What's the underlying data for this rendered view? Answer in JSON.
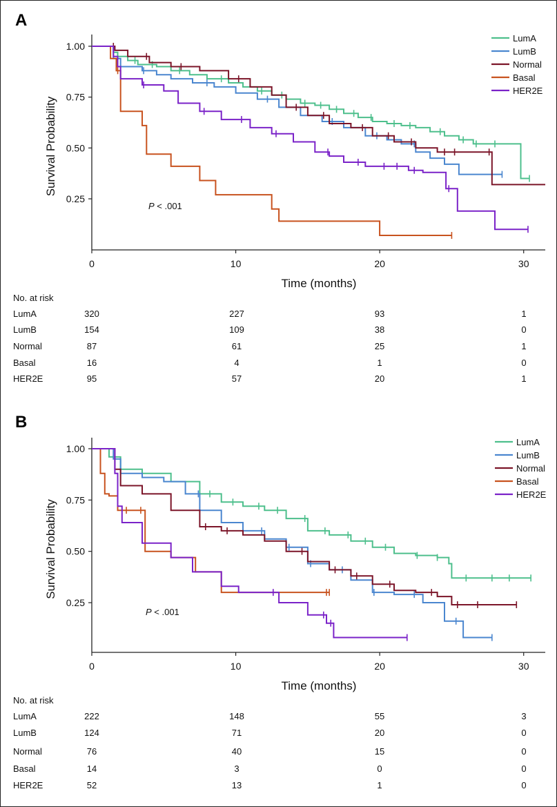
{
  "chart_data": [
    {
      "type": "line",
      "panel": "A",
      "xlabel": "Time (months)",
      "ylabel": "Survival Probability",
      "xlim": [
        0,
        31.5
      ],
      "ylim": [
        0,
        1.05
      ],
      "xticks": [
        "0",
        "10",
        "20",
        "30"
      ],
      "yticks": [
        "1.00",
        "0.75",
        "0.50",
        "0.25"
      ],
      "legend": [
        "LumA",
        "LumB",
        "Normal",
        "Basal",
        "HER2E"
      ],
      "annotation": {
        "italic": "P",
        "rest": " < .001"
      },
      "series": [
        {
          "name": "LumA",
          "color": "#4dbf8c",
          "x": [
            0,
            1.5,
            1.8,
            2.5,
            3.2,
            4.5,
            5.5,
            6.8,
            8,
            9.5,
            10.5,
            11.5,
            12.5,
            13.5,
            14.5,
            15.5,
            16.5,
            17.5,
            18.5,
            19.5,
            20.5,
            21.5,
            22.5,
            23.5,
            24.5,
            25.5,
            26.5,
            27.5,
            28.5,
            29.8,
            30.4
          ],
          "y": [
            1,
            0.97,
            0.95,
            0.93,
            0.91,
            0.9,
            0.88,
            0.86,
            0.84,
            0.82,
            0.8,
            0.78,
            0.76,
            0.74,
            0.72,
            0.71,
            0.69,
            0.67,
            0.65,
            0.63,
            0.62,
            0.61,
            0.6,
            0.58,
            0.56,
            0.54,
            0.52,
            0.52,
            0.52,
            0.35,
            0.35
          ],
          "censor": [
            3.0,
            4.2,
            6.1,
            9.0,
            11.8,
            13.2,
            14.8,
            15.9,
            17.0,
            18.2,
            19.4,
            21.0,
            22.1,
            24.2,
            25.8,
            26.7,
            28.0,
            30.4
          ]
        },
        {
          "name": "LumB",
          "color": "#4a86cf",
          "x": [
            0,
            1.5,
            2,
            3.5,
            4.5,
            5.5,
            7,
            8.5,
            10,
            11.5,
            13,
            14.5,
            16,
            17.5,
            19,
            20.5,
            21.5,
            22.5,
            23.5,
            24.5,
            25.5,
            28.5
          ],
          "y": [
            1,
            0.94,
            0.9,
            0.88,
            0.86,
            0.84,
            0.82,
            0.8,
            0.77,
            0.74,
            0.7,
            0.66,
            0.63,
            0.6,
            0.56,
            0.54,
            0.52,
            0.48,
            0.45,
            0.42,
            0.37,
            0.37
          ],
          "censor": [
            3.6,
            8.0,
            12.2,
            16.7,
            19.8,
            22.4,
            28.5
          ]
        },
        {
          "name": "Normal",
          "color": "#7b1428",
          "x": [
            0,
            1.6,
            2.5,
            4,
            5.5,
            7.5,
            9.5,
            11,
            12.5,
            13.5,
            15,
            16.5,
            18,
            19.5,
            21,
            22.5,
            24,
            27.5,
            27.8,
            31.5
          ],
          "y": [
            1,
            0.98,
            0.95,
            0.92,
            0.9,
            0.88,
            0.84,
            0.8,
            0.76,
            0.7,
            0.66,
            0.62,
            0.6,
            0.56,
            0.53,
            0.5,
            0.48,
            0.48,
            0.32,
            0.32
          ],
          "censor": [
            1.5,
            3.8,
            6.2,
            10.2,
            14.2,
            16.1,
            18.8,
            20.6,
            22.2,
            24.5,
            25.2,
            27.6
          ]
        },
        {
          "name": "Basal",
          "color": "#c8521e",
          "x": [
            0,
            1.3,
            1.7,
            2,
            3.5,
            3.8,
            5.5,
            7.5,
            8.6,
            12.5,
            13,
            19.5,
            20,
            25
          ],
          "y": [
            1,
            0.94,
            0.88,
            0.68,
            0.61,
            0.47,
            0.41,
            0.34,
            0.27,
            0.2,
            0.14,
            0.14,
            0.07,
            0.07
          ],
          "censor": [
            1.8,
            25.0
          ]
        },
        {
          "name": "HER2E",
          "color": "#7a22c8",
          "x": [
            0,
            1.5,
            1.8,
            2,
            3.5,
            5,
            6,
            7.5,
            9,
            11,
            12.5,
            14,
            15.5,
            16.5,
            17.5,
            19,
            22,
            23,
            24.6,
            25.4,
            28,
            30.3
          ],
          "y": [
            1,
            0.95,
            0.9,
            0.84,
            0.81,
            0.78,
            0.72,
            0.68,
            0.64,
            0.6,
            0.57,
            0.53,
            0.48,
            0.46,
            0.43,
            0.41,
            0.39,
            0.38,
            0.3,
            0.19,
            0.1,
            0.1
          ],
          "censor": [
            3.6,
            7.8,
            10.4,
            12.8,
            16.4,
            18.5,
            20.3,
            21.2,
            22.4,
            24.8,
            30.3
          ]
        }
      ],
      "risk_table": {
        "title": "No. at risk",
        "times": [
          0,
          10,
          20,
          30
        ],
        "rows": [
          {
            "label": "LumA",
            "values": [
              "320",
              "227",
              "93",
              "1"
            ]
          },
          {
            "label": "LumB",
            "values": [
              "154",
              "109",
              "38",
              "0"
            ]
          },
          {
            "label": "Normal",
            "values": [
              "87",
              "61",
              "25",
              "1"
            ]
          },
          {
            "label": "Basal",
            "values": [
              "16",
              "4",
              "1",
              "0"
            ]
          },
          {
            "label": "HER2E",
            "values": [
              "95",
              "57",
              "20",
              "1"
            ]
          }
        ]
      }
    },
    {
      "type": "line",
      "panel": "B",
      "xlabel": "Time (months)",
      "ylabel": "Survival Probability",
      "xlim": [
        0,
        31.5
      ],
      "ylim": [
        0,
        1.05
      ],
      "xticks": [
        "0",
        "10",
        "20",
        "30"
      ],
      "yticks": [
        "1.00",
        "0.75",
        "0.50",
        "0.25"
      ],
      "legend": [
        "LumA",
        "LumB",
        "Normal",
        "Basal",
        "HER2E"
      ],
      "annotation": {
        "italic": "P",
        "rest": " < .001"
      },
      "series": [
        {
          "name": "LumA",
          "color": "#4dbf8c",
          "x": [
            0,
            1.2,
            2,
            3.5,
            5.5,
            7.5,
            9,
            10.5,
            12,
            13.5,
            15,
            16.5,
            18,
            19.5,
            21,
            22.5,
            24,
            24.8,
            25,
            27.5,
            30.5
          ],
          "y": [
            1,
            0.96,
            0.9,
            0.88,
            0.84,
            0.78,
            0.74,
            0.72,
            0.7,
            0.66,
            0.6,
            0.58,
            0.55,
            0.52,
            0.49,
            0.48,
            0.47,
            0.44,
            0.37,
            0.37,
            0.37
          ],
          "censor": [
            8.2,
            9.8,
            11.6,
            12.9,
            14.8,
            16.2,
            17.8,
            19.0,
            20.4,
            22.6,
            24.0,
            26.0,
            27.8,
            29.0,
            30.5
          ]
        },
        {
          "name": "LumB",
          "color": "#4a86cf",
          "x": [
            0,
            1.5,
            2,
            3.5,
            5,
            6.5,
            7.5,
            9,
            10.5,
            12,
            13.5,
            15,
            16.5,
            18,
            19.5,
            21,
            23,
            24.5,
            25.8,
            27.8
          ],
          "y": [
            1,
            0.95,
            0.88,
            0.86,
            0.84,
            0.78,
            0.7,
            0.64,
            0.6,
            0.56,
            0.52,
            0.44,
            0.41,
            0.36,
            0.3,
            0.29,
            0.25,
            0.16,
            0.08,
            0.08
          ],
          "censor": [
            7.4,
            11.8,
            13.7,
            15.2,
            17.4,
            19.6,
            22.4,
            25.3,
            27.8
          ]
        },
        {
          "name": "Normal",
          "color": "#7b1428",
          "x": [
            0,
            1.6,
            2,
            3.5,
            5.5,
            7.5,
            9,
            10.5,
            12,
            13.5,
            15,
            16.5,
            18,
            19.5,
            21,
            22.5,
            24,
            25,
            29.5
          ],
          "y": [
            1,
            0.9,
            0.82,
            0.78,
            0.7,
            0.62,
            0.6,
            0.58,
            0.55,
            0.5,
            0.45,
            0.41,
            0.38,
            0.34,
            0.31,
            0.3,
            0.28,
            0.24,
            0.24
          ],
          "censor": [
            7.9,
            9.4,
            14.6,
            16.9,
            18.4,
            20.7,
            23.6,
            25.4,
            26.8,
            29.5
          ]
        },
        {
          "name": "Basal",
          "color": "#c8521e",
          "x": [
            0,
            0.6,
            0.9,
            1.2,
            1.8,
            3.5,
            3.7,
            5.5,
            7.2,
            9,
            16.5
          ],
          "y": [
            1,
            0.88,
            0.78,
            0.77,
            0.7,
            0.7,
            0.5,
            0.47,
            0.4,
            0.3,
            0.3
          ],
          "censor": [
            2.4,
            3.4,
            16.3,
            16.5
          ]
        },
        {
          "name": "HER2E",
          "color": "#7a22c8",
          "x": [
            0,
            1.6,
            1.8,
            2.1,
            3.5,
            5.5,
            7,
            9,
            10.2,
            13,
            15,
            16.3,
            16.8,
            21.9
          ],
          "y": [
            1,
            0.88,
            0.72,
            0.64,
            0.54,
            0.47,
            0.4,
            0.33,
            0.3,
            0.25,
            0.19,
            0.15,
            0.08,
            0.08
          ],
          "censor": [
            12.6,
            16.1,
            16.6,
            21.9
          ]
        }
      ],
      "risk_table": {
        "title": "No. at risk",
        "times": [
          0,
          10,
          20,
          30
        ],
        "rows": [
          {
            "label": "LumA",
            "values": [
              "222",
              "148",
              "55",
              "3"
            ]
          },
          {
            "label": "LumB",
            "values": [
              "124",
              "71",
              "20",
              "0"
            ]
          },
          {
            "label": "Normal",
            "values": [
              "76",
              "40",
              "15",
              "0"
            ]
          },
          {
            "label": "Basal",
            "values": [
              "14",
              "3",
              "0",
              "0"
            ]
          },
          {
            "label": "HER2E",
            "values": [
              "52",
              "13",
              "1",
              "0"
            ]
          }
        ]
      }
    }
  ]
}
